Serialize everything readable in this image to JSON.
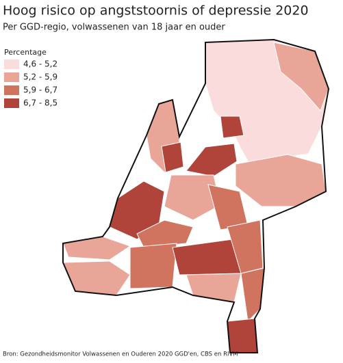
{
  "title": "Hoog risico op angststoornis of depressie 2020",
  "subtitle": "Per GGD-regio, volwassenen van 18 jaar en ouder",
  "legend": {
    "title": "Percentage",
    "items": [
      {
        "label": "4,6 - 5,2",
        "color": "#fbdcdc"
      },
      {
        "label": "5,2 - 5,9",
        "color": "#e8a598"
      },
      {
        "label": "5,9 - 6,7",
        "color": "#d0735f"
      },
      {
        "label": "6,7 - 8,5",
        "color": "#b0443a"
      }
    ]
  },
  "source": "Bron: Gezondheidsmonitor Volwassenen en Ouderen 2020 GGD'en, CBS en RIVM"
}
